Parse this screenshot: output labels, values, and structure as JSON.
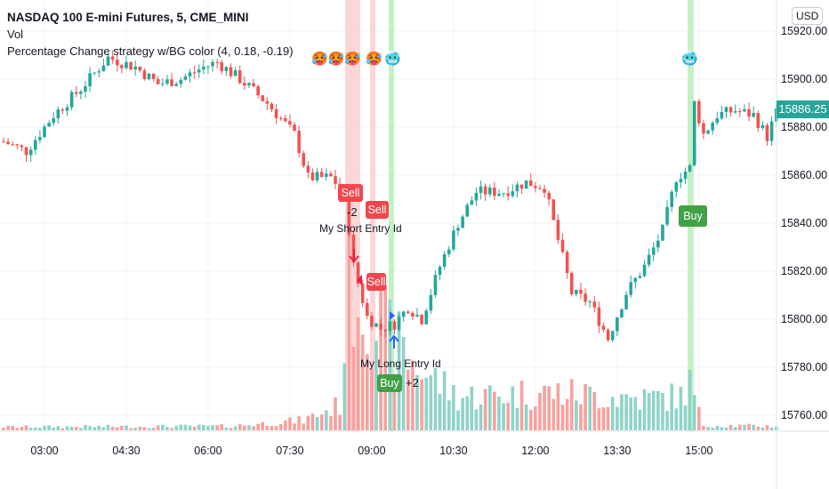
{
  "header": {
    "symbol_title": "NASDAQ 100 E-mini Futures, 5, CME_MINI",
    "volume_label": "Vol",
    "strategy_label": "Percentage Change strategy w/BG color (4, 0.18, -0.19)"
  },
  "currency": "USD",
  "last_price": "15886.25",
  "markers": {
    "sell_1": "Sell",
    "sell_2": "Sell",
    "sell_3": "Sell",
    "short_qty": "-2",
    "short_id": "My Short Entry Id",
    "long_id": "My Long Entry Id",
    "long_qty": "+2",
    "buy_1": "Buy",
    "buy_2": "Buy"
  },
  "emojis": {
    "hot_faces": "🥵🥵🥵",
    "hot_face": "🥵",
    "cold_face_1": "🥶",
    "cold_face_2": "🥶"
  },
  "colors": {
    "up": "#26a69a",
    "down": "#ef5350",
    "vol_up": "#8fd3c9",
    "vol_down": "#f7a19d",
    "bg_red": "#fbd3d3",
    "bg_green": "#c5f0c5"
  },
  "chart_data": {
    "type": "candlestick",
    "title": "NASDAQ 100 E-mini Futures, 5, CME_MINI",
    "ylim": [
      15755,
      15925
    ],
    "y_ticks": [
      "15920.00",
      "15900.00",
      "15880.00",
      "15860.00",
      "15840.00",
      "15820.00",
      "15800.00",
      "15780.00",
      "15760.00"
    ],
    "x_ticks": [
      "03:00",
      "04:30",
      "06:00",
      "07:30",
      "09:00",
      "10:30",
      "12:00",
      "13:30",
      "15:00"
    ],
    "bar_interval_min": 5,
    "price_path": [
      [
        0,
        15874
      ],
      [
        5,
        15870
      ],
      [
        11,
        15885
      ],
      [
        17,
        15896
      ],
      [
        23,
        15909
      ],
      [
        29,
        15905
      ],
      [
        34,
        15898
      ],
      [
        39,
        15900
      ],
      [
        44,
        15905
      ],
      [
        47,
        15907
      ],
      [
        52,
        15900
      ],
      [
        58,
        15890
      ],
      [
        64,
        15877
      ],
      [
        67,
        15859
      ],
      [
        72,
        15859
      ],
      [
        75,
        15853
      ],
      [
        77,
        15822
      ],
      [
        80,
        15801
      ],
      [
        83,
        15796
      ],
      [
        86,
        15798
      ],
      [
        89,
        15805
      ],
      [
        92,
        15800
      ],
      [
        96,
        15822
      ],
      [
        100,
        15840
      ],
      [
        104,
        15853
      ],
      [
        110,
        15853
      ],
      [
        115,
        15857
      ],
      [
        119,
        15855
      ],
      [
        122,
        15833
      ],
      [
        125,
        15811
      ],
      [
        129,
        15807
      ],
      [
        133,
        15792
      ],
      [
        137,
        15811
      ],
      [
        141,
        15822
      ],
      [
        145,
        15837
      ],
      [
        148,
        15859
      ],
      [
        151,
        15863
      ],
      [
        152,
        15890
      ],
      [
        154,
        15877
      ],
      [
        157,
        15885
      ],
      [
        161,
        15887
      ],
      [
        165,
        15885
      ],
      [
        168,
        15876
      ],
      [
        170,
        15886
      ]
    ],
    "volume_profile": [
      [
        0,
        4
      ],
      [
        50,
        5
      ],
      [
        66,
        12
      ],
      [
        74,
        30
      ],
      [
        76,
        180
      ],
      [
        82,
        130
      ],
      [
        90,
        80
      ],
      [
        100,
        40
      ],
      [
        120,
        45
      ],
      [
        140,
        38
      ],
      [
        149,
        40
      ],
      [
        151,
        55
      ],
      [
        153,
        20
      ],
      [
        154,
        6
      ],
      [
        170,
        5
      ]
    ]
  }
}
